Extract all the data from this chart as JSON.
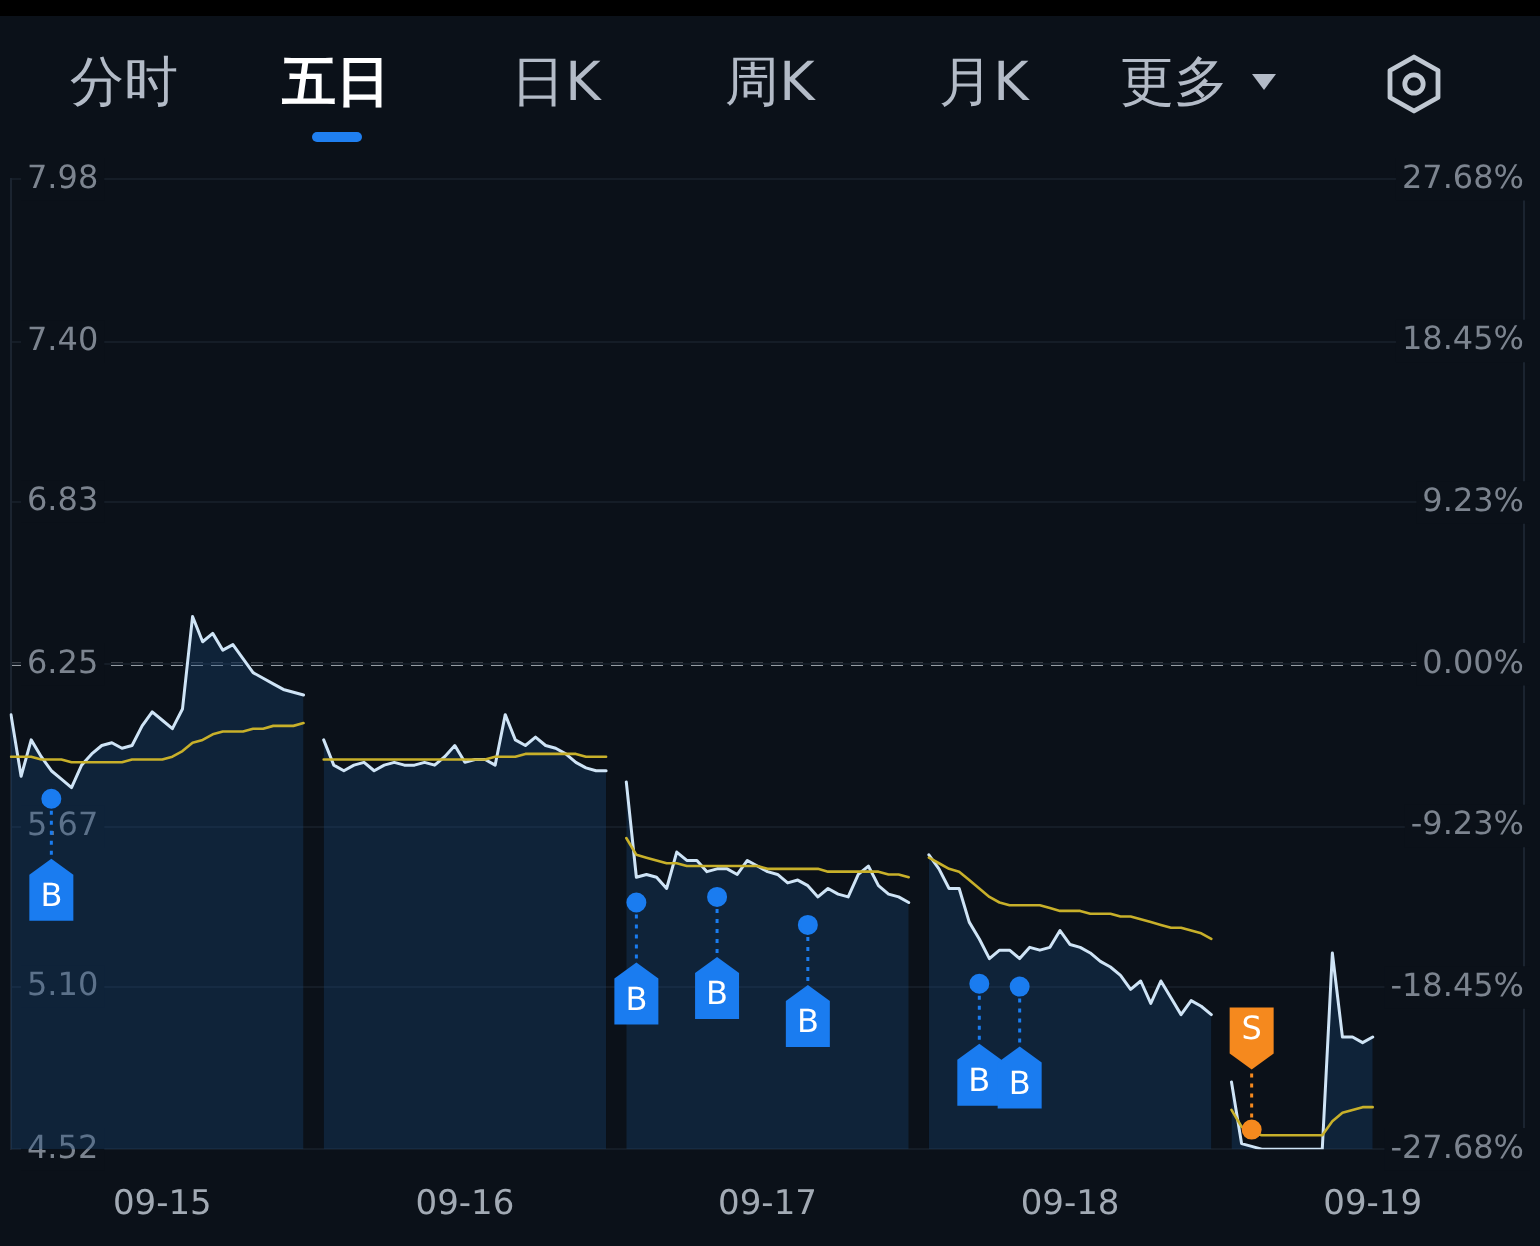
{
  "chart_data": {
    "type": "area",
    "title": "五日",
    "annotations": [
      "分时",
      "日K",
      "周K",
      "月K",
      "更多"
    ],
    "categories": [
      null,
      null,
      null,
      null,
      null,
      null,
      null,
      null,
      null,
      null,
      null,
      null,
      null,
      null,
      null,
      "09-15",
      null,
      null,
      null,
      null,
      null,
      null,
      null,
      null,
      null,
      null,
      null,
      null,
      null,
      null,
      null,
      null,
      null,
      null,
      null,
      null,
      null,
      null,
      null,
      null,
      null,
      null,
      null,
      null,
      null,
      "09-16",
      null,
      null,
      null,
      null,
      null,
      null,
      null,
      null,
      null,
      null,
      null,
      null,
      null,
      null,
      null,
      null,
      null,
      null,
      null,
      null,
      null,
      null,
      null,
      null,
      null,
      null,
      null,
      null,
      null,
      "09-17",
      null,
      null,
      null,
      null,
      null,
      null,
      null,
      null,
      null,
      null,
      null,
      null,
      null,
      null,
      null,
      null,
      null,
      null,
      null,
      null,
      null,
      null,
      null,
      null,
      null,
      null,
      null,
      null,
      null,
      "09-18",
      null,
      null,
      null,
      null,
      null,
      null,
      null,
      null,
      null,
      null,
      null,
      null,
      null,
      null,
      null,
      null,
      null,
      null,
      null,
      null,
      null,
      null,
      null,
      null,
      null,
      null,
      null,
      null,
      null,
      "09-19",
      null,
      null,
      null,
      null,
      null,
      null,
      null,
      null,
      null,
      null,
      null,
      null,
      null,
      null,
      null
    ],
    "ylim": [
      4.52,
      7.98
    ],
    "yticks": [
      7.98,
      {
        "value": 7.4,
        "label": "7.40"
      },
      6.83,
      6.25,
      5.67,
      {
        "value": 5.1,
        "label": "5.10"
      },
      4.52
    ],
    "y2lim": [
      -27.68,
      27.68
    ],
    "y2ticks": [
      {
        "value": 27.68,
        "label": "27.68%"
      },
      {
        "value": 18.45,
        "label": "18.45%"
      },
      {
        "value": 9.23,
        "label": "9.23%"
      },
      {
        "value": 0,
        "label": "0.00%"
      },
      {
        "value": -9.23,
        "label": "-9.23%"
      },
      {
        "value": -18.45,
        "label": "-18.45%"
      },
      {
        "value": -27.68,
        "label": "-27.68%"
      }
    ],
    "grid": "y",
    "ref_lines": [
      {
        "axis": "y",
        "value": 6.25,
        "color": "#c5cad1",
        "line_style": "dashed"
      }
    ],
    "series": [
      {
        "color": "#cfe4f6",
        "values": [
          6.07,
          5.85,
          5.98,
          5.92,
          5.87,
          5.84,
          5.81,
          5.89,
          5.93,
          5.96,
          5.97,
          5.95,
          5.96,
          6.03,
          6.08,
          6.05,
          6.02,
          6.09,
          6.42,
          6.33,
          6.36,
          6.3,
          6.32,
          6.27,
          6.22,
          6.2,
          6.18,
          6.16,
          6.15,
          6.14,
          null,
          5.98,
          5.89,
          5.87,
          5.89,
          5.9,
          5.87,
          5.89,
          5.9,
          5.89,
          5.89,
          5.9,
          5.89,
          5.92,
          5.96,
          5.9,
          5.91,
          5.91,
          5.89,
          6.07,
          5.98,
          5.96,
          5.99,
          5.96,
          5.95,
          5.93,
          5.9,
          5.88,
          5.87,
          5.87,
          null,
          5.83,
          5.49,
          5.5,
          5.49,
          5.45,
          5.58,
          5.55,
          5.55,
          5.51,
          5.52,
          5.52,
          5.5,
          5.55,
          5.53,
          5.51,
          5.5,
          5.47,
          5.48,
          5.46,
          5.42,
          5.45,
          5.43,
          5.42,
          5.5,
          5.53,
          5.46,
          5.43,
          5.42,
          5.4,
          null,
          5.57,
          5.52,
          5.45,
          5.45,
          5.33,
          5.27,
          5.2,
          5.23,
          5.23,
          5.2,
          5.24,
          5.23,
          5.24,
          5.3,
          5.25,
          5.24,
          5.22,
          5.19,
          5.17,
          5.14,
          5.09,
          5.12,
          5.04,
          5.12,
          5.06,
          5.0,
          5.05,
          5.03,
          5.0,
          null,
          4.76,
          4.54,
          4.53,
          4.52,
          4.52,
          4.52,
          4.52,
          4.52,
          4.52,
          4.52,
          5.22,
          4.92,
          4.92,
          4.9,
          4.92,
          null,
          null,
          null,
          null,
          null,
          null,
          null,
          null,
          null,
          null,
          null,
          null,
          null,
          null,
          null
        ]
      },
      {
        "type": "line",
        "color": "#c8b02a",
        "values": [
          5.92,
          5.92,
          5.92,
          5.91,
          5.91,
          5.91,
          5.9,
          5.9,
          5.9,
          5.9,
          5.9,
          5.9,
          5.91,
          5.91,
          5.91,
          5.91,
          5.92,
          5.94,
          5.97,
          5.98,
          6.0,
          6.01,
          6.01,
          6.01,
          6.02,
          6.02,
          6.03,
          6.03,
          6.03,
          6.04,
          null,
          5.91,
          5.91,
          5.91,
          5.91,
          5.91,
          5.91,
          5.91,
          5.91,
          5.91,
          5.91,
          5.91,
          5.91,
          5.91,
          5.91,
          5.91,
          5.91,
          5.91,
          5.92,
          5.92,
          5.92,
          5.93,
          5.93,
          5.93,
          5.93,
          5.93,
          5.93,
          5.92,
          5.92,
          5.92,
          null,
          5.63,
          5.57,
          5.56,
          5.55,
          5.54,
          5.54,
          5.53,
          5.53,
          5.53,
          5.53,
          5.53,
          5.53,
          5.53,
          5.53,
          5.52,
          5.52,
          5.52,
          5.52,
          5.52,
          5.52,
          5.51,
          5.51,
          5.51,
          5.51,
          5.51,
          5.51,
          5.5,
          5.5,
          5.49,
          null,
          5.56,
          5.54,
          5.52,
          5.51,
          5.48,
          5.45,
          5.42,
          5.4,
          5.39,
          5.39,
          5.39,
          5.39,
          5.38,
          5.37,
          5.37,
          5.37,
          5.36,
          5.36,
          5.36,
          5.35,
          5.35,
          5.34,
          5.33,
          5.32,
          5.31,
          5.31,
          5.3,
          5.29,
          5.27,
          null,
          4.66,
          4.6,
          4.58,
          4.57,
          4.57,
          4.57,
          4.57,
          4.57,
          4.57,
          4.57,
          4.62,
          4.65,
          4.66,
          4.67,
          4.67,
          null,
          null,
          null,
          null,
          null,
          null,
          null,
          null,
          null,
          null,
          null,
          null,
          null,
          null,
          null
        ]
      },
      {
        "name": "B",
        "type": "scatter",
        "color": "#1a7cf0",
        "marker": "circle",
        "values": [
          null,
          null,
          null,
          null,
          5.77,
          null,
          null,
          null,
          null,
          null,
          null,
          null,
          null,
          null,
          null,
          null,
          null,
          null,
          null,
          null,
          null,
          null,
          null,
          null,
          null,
          null,
          null,
          null,
          null,
          null,
          null,
          null,
          null,
          null,
          null,
          null,
          null,
          null,
          null,
          null,
          null,
          null,
          null,
          null,
          null,
          null,
          null,
          null,
          null,
          null,
          null,
          null,
          null,
          null,
          null,
          null,
          null,
          null,
          null,
          null,
          null,
          null,
          5.4,
          null,
          null,
          null,
          null,
          null,
          null,
          null,
          5.42,
          null,
          null,
          null,
          null,
          null,
          null,
          null,
          null,
          5.32,
          null,
          null,
          null,
          null,
          null,
          null,
          null,
          null,
          null,
          null,
          null,
          null,
          null,
          null,
          null,
          null,
          5.11,
          null,
          null,
          null,
          5.1,
          null,
          null,
          null,
          null,
          null,
          null,
          null,
          null,
          null,
          null,
          null,
          null,
          null,
          null,
          null,
          null,
          null,
          null,
          null,
          null,
          null,
          null,
          null,
          null,
          null,
          null,
          null,
          null,
          null,
          null,
          null,
          null,
          null,
          null,
          null,
          null,
          null,
          null,
          null,
          null,
          null,
          null,
          null,
          null,
          null,
          null,
          null,
          null,
          null,
          null
        ]
      },
      {
        "name": "S",
        "type": "scatter",
        "color": "#f5891e",
        "marker": "circle",
        "values": [
          null,
          null,
          null,
          null,
          null,
          null,
          null,
          null,
          null,
          null,
          null,
          null,
          null,
          null,
          null,
          null,
          null,
          null,
          null,
          null,
          null,
          null,
          null,
          null,
          null,
          null,
          null,
          null,
          null,
          null,
          null,
          null,
          null,
          null,
          null,
          null,
          null,
          null,
          null,
          null,
          null,
          null,
          null,
          null,
          null,
          null,
          null,
          null,
          null,
          null,
          null,
          null,
          null,
          null,
          null,
          null,
          null,
          null,
          null,
          null,
          null,
          null,
          null,
          null,
          null,
          null,
          null,
          null,
          null,
          null,
          null,
          null,
          null,
          null,
          null,
          null,
          null,
          null,
          null,
          null,
          null,
          null,
          null,
          null,
          null,
          null,
          null,
          null,
          null,
          null,
          null,
          null,
          null,
          null,
          null,
          null,
          null,
          null,
          null,
          null,
          null,
          null,
          null,
          null,
          null,
          null,
          null,
          null,
          null,
          null,
          null,
          null,
          null,
          null,
          null,
          null,
          null,
          null,
          null,
          null,
          null,
          null,
          null,
          4.59,
          null,
          null,
          null,
          null,
          null,
          null,
          null,
          null,
          null,
          null,
          null,
          null,
          null,
          null,
          null,
          null,
          null,
          null,
          null,
          null,
          null,
          null,
          null,
          null,
          null,
          null,
          null
        ]
      }
    ]
  }
}
